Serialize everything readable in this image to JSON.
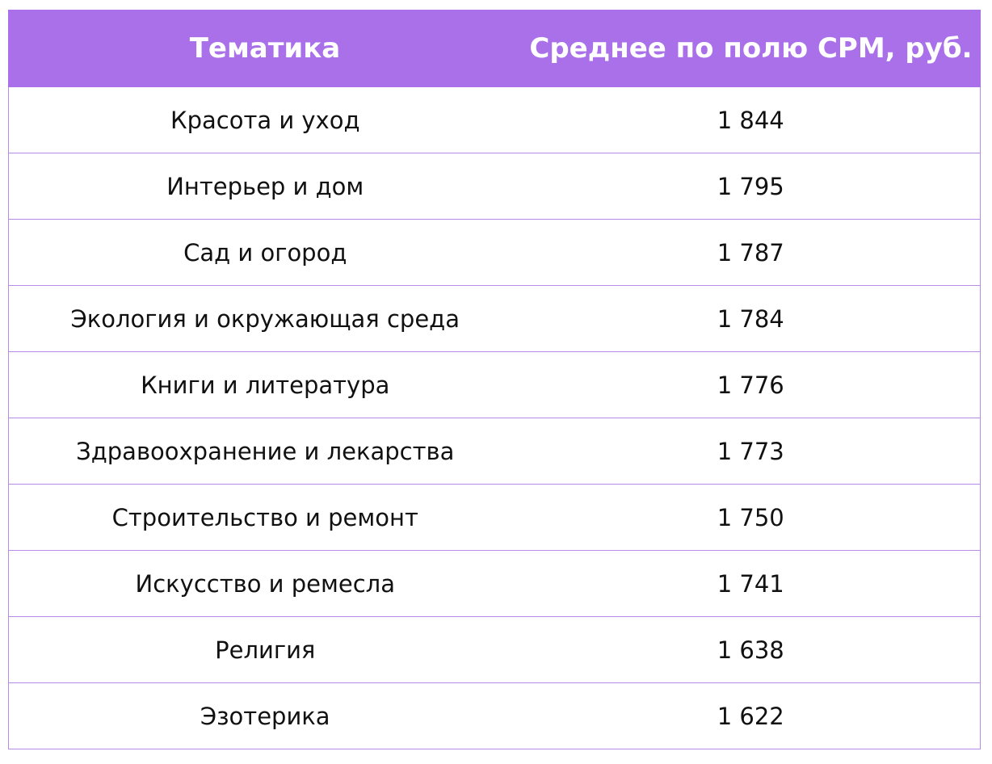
{
  "table": {
    "header": {
      "col1": "Тематика",
      "col2": "Среднее по полю CPM, руб."
    },
    "rows": [
      {
        "topic": "Красота и уход",
        "value": "1 844"
      },
      {
        "topic": "Интерьер и дом",
        "value": "1 795"
      },
      {
        "topic": "Сад и огород",
        "value": "1 787"
      },
      {
        "topic": "Экология и окружающая среда",
        "value": "1 784"
      },
      {
        "topic": "Книги и литература",
        "value": "1 776"
      },
      {
        "topic": "Здравоохранение и лекарства",
        "value": "1 773"
      },
      {
        "topic": "Строительство и ремонт",
        "value": "1 750"
      },
      {
        "topic": "Искусство и ремесла",
        "value": "1 741"
      },
      {
        "topic": "Религия",
        "value": "1 638"
      },
      {
        "topic": "Эзотерика",
        "value": "1 622"
      }
    ]
  },
  "colors": {
    "header_bg": "#a970ea",
    "header_text": "#ffffff",
    "border": "#b68ce8",
    "cell_text": "#111111"
  }
}
